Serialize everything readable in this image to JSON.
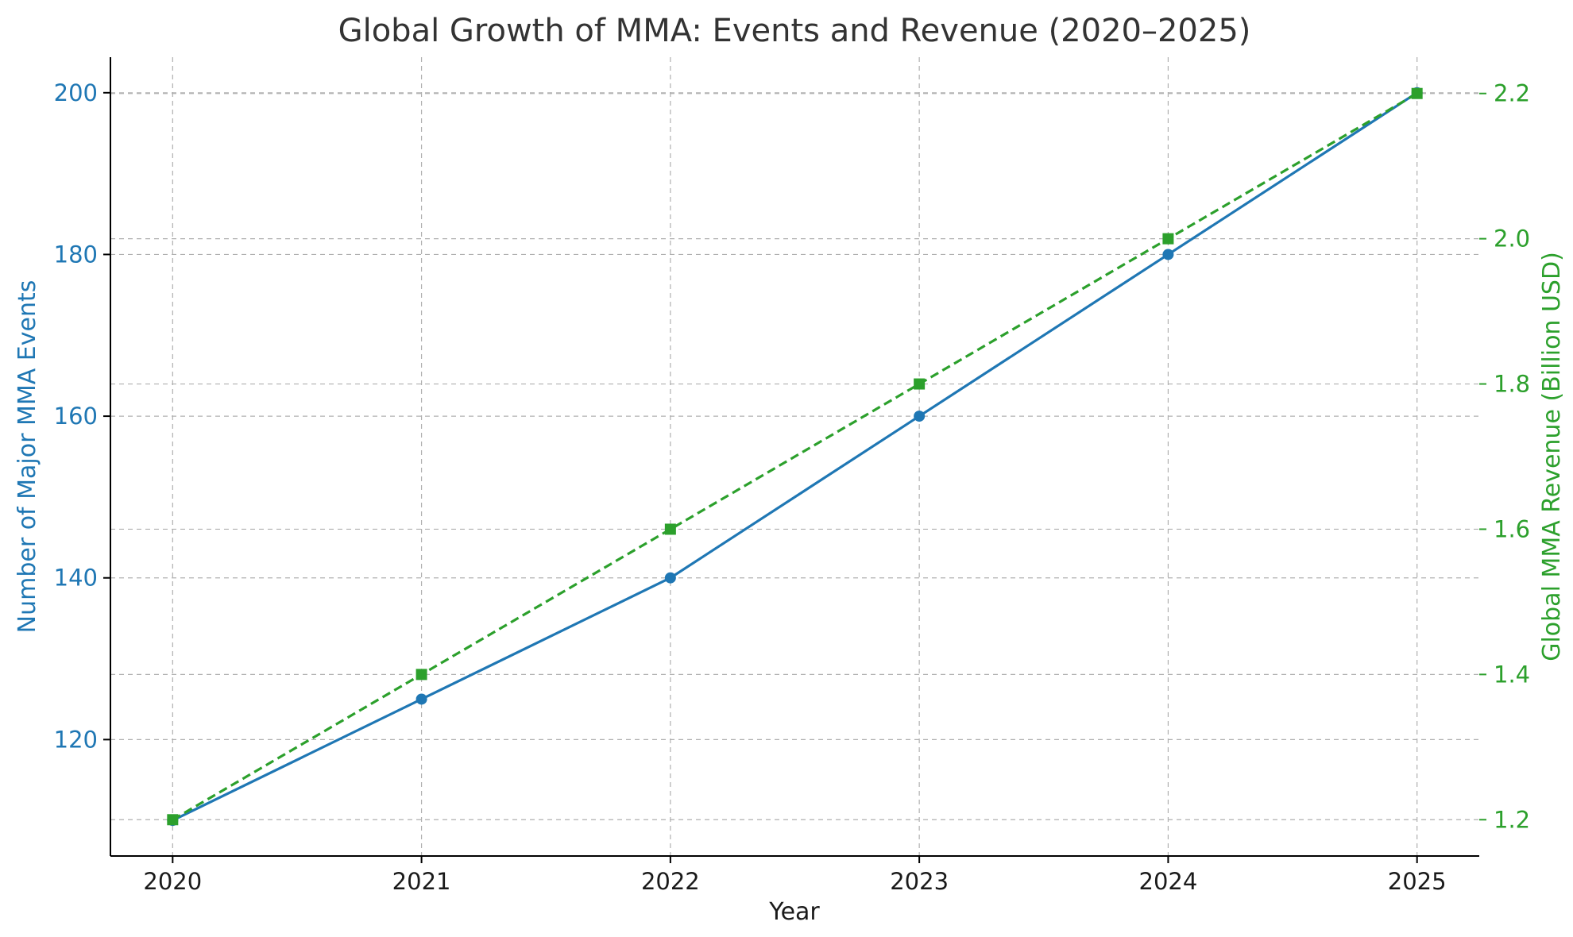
{
  "colors": {
    "left_axis": "#1f77b4",
    "right_axis": "#2ca02c",
    "text": "#333333",
    "grid": "#b0b0b0"
  },
  "chart_data": {
    "type": "line",
    "title": "Global Growth of MMA: Events and Revenue (2020–2025)",
    "xlabel": "Year",
    "ylabel_left": "Number of Major MMA Events",
    "ylabel_right": "Global MMA Revenue (Billion USD)",
    "x": [
      2020,
      2021,
      2022,
      2023,
      2024,
      2025
    ],
    "x_tick_labels": [
      "2020",
      "2021",
      "2022",
      "2023",
      "2024",
      "2025"
    ],
    "y_left_ticks": [
      120,
      140,
      160,
      180,
      200
    ],
    "y_left_tick_labels": [
      "120",
      "140",
      "160",
      "180",
      "200"
    ],
    "y_left_lim": [
      105.6,
      204.4
    ],
    "y_right_ticks": [
      1.2,
      1.4,
      1.6,
      1.8,
      2.0,
      2.2
    ],
    "y_right_tick_labels": [
      "1.2",
      "1.4",
      "1.6",
      "1.8",
      "2.0",
      "2.2"
    ],
    "y_right_lim": [
      1.15,
      2.25
    ],
    "grid": true,
    "series": [
      {
        "axis": "left",
        "values": [
          110,
          125,
          140,
          160,
          180,
          200
        ],
        "color": "#1f77b4",
        "line_style": "solid",
        "marker": "circle"
      },
      {
        "axis": "right",
        "values": [
          1.2,
          1.4,
          1.6,
          1.8,
          2.0,
          2.2
        ],
        "color": "#2ca02c",
        "line_style": "dashed",
        "marker": "square"
      }
    ]
  }
}
